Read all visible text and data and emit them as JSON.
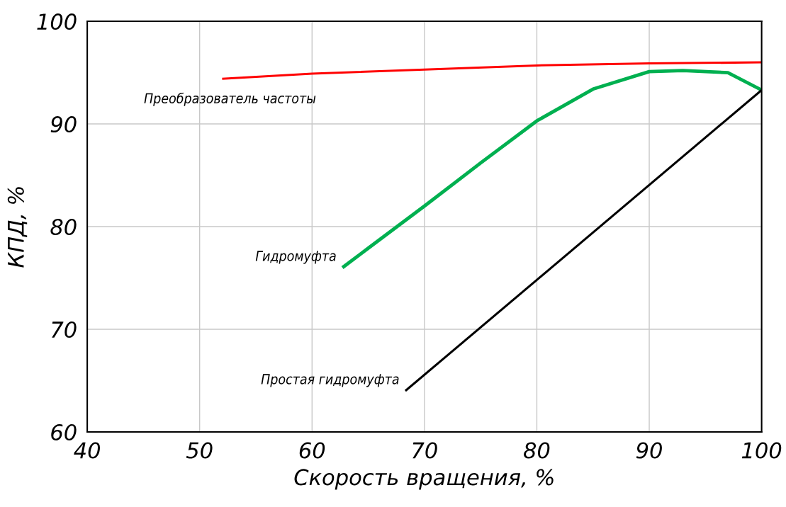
{
  "chart_data": {
    "type": "line",
    "xlabel": "Скорость вращения, %",
    "ylabel": "КПД, %",
    "xlim": [
      40,
      100
    ],
    "xticks": [
      40,
      50,
      60,
      70,
      80,
      90,
      100
    ],
    "ylim": [
      60,
      100
    ],
    "yticks": [
      60,
      70,
      80,
      90,
      100
    ],
    "grid": true,
    "legend": false,
    "series": [
      {
        "name": "Преобразователь частоты",
        "color": "#ff0000",
        "x": [
          52,
          60,
          70,
          80,
          90,
          100
        ],
        "values": [
          94.4,
          94.9,
          95.3,
          95.7,
          95.9,
          96.0
        ]
      },
      {
        "name": "Гидромуфта",
        "color": "#00b050",
        "x": [
          62.7,
          65,
          70,
          75,
          80,
          85,
          90,
          93,
          97,
          100
        ],
        "values": [
          76,
          77.9,
          82,
          86.2,
          90.3,
          93.4,
          95.1,
          95.2,
          95.0,
          93.3
        ]
      },
      {
        "name": "Простая гидромуфта",
        "color": "#000000",
        "x": [
          68.3,
          100
        ],
        "values": [
          64,
          93.3
        ]
      }
    ]
  }
}
